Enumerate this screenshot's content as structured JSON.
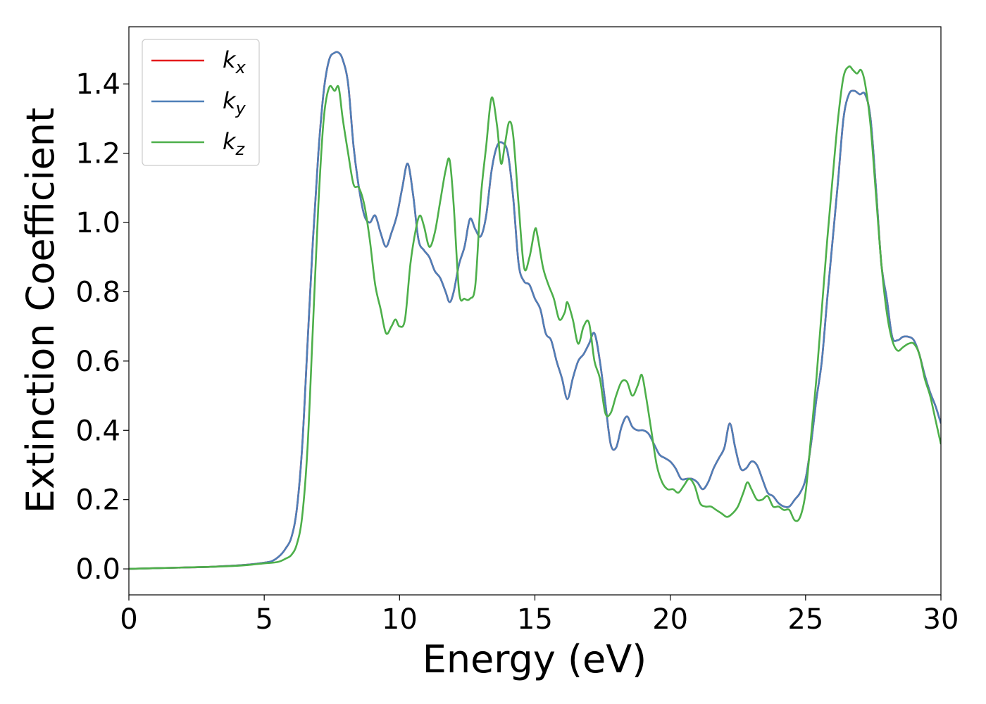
{
  "chart_data": {
    "type": "line",
    "title": "",
    "xlabel": "Energy (eV)",
    "ylabel": "Extinction Coefficient",
    "xlim": [
      0,
      30
    ],
    "ylim": [
      -0.075,
      1.565
    ],
    "xticks": [
      0,
      5,
      10,
      15,
      20,
      25,
      30
    ],
    "yticks": [
      0.0,
      0.2,
      0.4,
      0.6,
      0.8,
      1.0,
      1.2,
      1.4
    ],
    "grid": false,
    "legend_position": "top-left",
    "series": [
      {
        "name": "k",
        "subscript": "x",
        "color": "#e41a1c",
        "x": [
          0,
          1,
          2,
          3,
          4,
          4.5,
          5,
          5.3,
          5.6,
          5.8,
          6.0,
          6.2,
          6.4,
          6.6,
          6.8,
          7.0,
          7.2,
          7.4,
          7.6,
          7.75,
          7.9,
          8.1,
          8.3,
          8.5,
          8.7,
          8.9,
          9.1,
          9.3,
          9.5,
          9.7,
          9.9,
          10.1,
          10.3,
          10.5,
          10.7,
          10.9,
          11.1,
          11.3,
          11.5,
          11.7,
          11.85,
          12.0,
          12.2,
          12.4,
          12.6,
          12.8,
          13.0,
          13.2,
          13.4,
          13.6,
          13.8,
          14.0,
          14.2,
          14.4,
          14.6,
          14.8,
          15.0,
          15.2,
          15.4,
          15.6,
          15.8,
          16.0,
          16.2,
          16.4,
          16.6,
          16.8,
          17.0,
          17.2,
          17.4,
          17.6,
          17.8,
          18.0,
          18.2,
          18.4,
          18.6,
          18.8,
          19.0,
          19.2,
          19.4,
          19.6,
          19.8,
          20.0,
          20.2,
          20.4,
          20.6,
          20.8,
          21.0,
          21.2,
          21.4,
          21.6,
          21.8,
          22.0,
          22.2,
          22.4,
          22.6,
          22.8,
          23.0,
          23.2,
          23.4,
          23.6,
          23.8,
          24.0,
          24.2,
          24.4,
          24.6,
          24.8,
          25.0,
          25.2,
          25.4,
          25.6,
          25.8,
          26.0,
          26.2,
          26.4,
          26.6,
          26.8,
          27.0,
          27.2,
          27.4,
          27.6,
          27.8,
          28.0,
          28.2,
          28.4,
          28.6,
          28.8,
          29.0,
          29.2,
          29.4,
          29.6,
          29.8,
          30.0
        ],
        "y": [
          0.0,
          0.002,
          0.004,
          0.006,
          0.01,
          0.013,
          0.018,
          0.023,
          0.04,
          0.06,
          0.09,
          0.17,
          0.35,
          0.65,
          0.95,
          1.2,
          1.38,
          1.47,
          1.49,
          1.49,
          1.47,
          1.4,
          1.22,
          1.1,
          1.02,
          1.0,
          1.02,
          0.97,
          0.93,
          0.97,
          1.02,
          1.1,
          1.17,
          1.08,
          0.95,
          0.92,
          0.9,
          0.86,
          0.84,
          0.8,
          0.77,
          0.8,
          0.88,
          0.93,
          1.01,
          0.98,
          0.96,
          1.02,
          1.15,
          1.22,
          1.23,
          1.2,
          1.07,
          0.88,
          0.83,
          0.82,
          0.78,
          0.75,
          0.68,
          0.66,
          0.6,
          0.55,
          0.49,
          0.55,
          0.6,
          0.62,
          0.65,
          0.68,
          0.6,
          0.48,
          0.36,
          0.35,
          0.41,
          0.44,
          0.41,
          0.4,
          0.4,
          0.39,
          0.36,
          0.33,
          0.32,
          0.31,
          0.29,
          0.26,
          0.26,
          0.26,
          0.25,
          0.23,
          0.25,
          0.29,
          0.32,
          0.35,
          0.42,
          0.35,
          0.29,
          0.29,
          0.31,
          0.3,
          0.26,
          0.22,
          0.21,
          0.19,
          0.18,
          0.18,
          0.2,
          0.22,
          0.26,
          0.36,
          0.49,
          0.6,
          0.78,
          0.95,
          1.12,
          1.3,
          1.37,
          1.38,
          1.37,
          1.37,
          1.3,
          1.1,
          0.88,
          0.78,
          0.67,
          0.66,
          0.67,
          0.67,
          0.66,
          0.62,
          0.56,
          0.51,
          0.47,
          0.42
        ]
      },
      {
        "name": "k",
        "subscript": "y",
        "color": "#4e7fb8",
        "x": [
          0,
          1,
          2,
          3,
          4,
          4.5,
          5,
          5.3,
          5.6,
          5.8,
          6.0,
          6.2,
          6.4,
          6.6,
          6.8,
          7.0,
          7.2,
          7.4,
          7.6,
          7.75,
          7.9,
          8.1,
          8.3,
          8.5,
          8.7,
          8.9,
          9.1,
          9.3,
          9.5,
          9.7,
          9.9,
          10.1,
          10.3,
          10.5,
          10.7,
          10.9,
          11.1,
          11.3,
          11.5,
          11.7,
          11.85,
          12.0,
          12.2,
          12.4,
          12.6,
          12.8,
          13.0,
          13.2,
          13.4,
          13.6,
          13.8,
          14.0,
          14.2,
          14.4,
          14.6,
          14.8,
          15.0,
          15.2,
          15.4,
          15.6,
          15.8,
          16.0,
          16.2,
          16.4,
          16.6,
          16.8,
          17.0,
          17.2,
          17.4,
          17.6,
          17.8,
          18.0,
          18.2,
          18.4,
          18.6,
          18.8,
          19.0,
          19.2,
          19.4,
          19.6,
          19.8,
          20.0,
          20.2,
          20.4,
          20.6,
          20.8,
          21.0,
          21.2,
          21.4,
          21.6,
          21.8,
          22.0,
          22.2,
          22.4,
          22.6,
          22.8,
          23.0,
          23.2,
          23.4,
          23.6,
          23.8,
          24.0,
          24.2,
          24.4,
          24.6,
          24.8,
          25.0,
          25.2,
          25.4,
          25.6,
          25.8,
          26.0,
          26.2,
          26.4,
          26.6,
          26.8,
          27.0,
          27.2,
          27.4,
          27.6,
          27.8,
          28.0,
          28.2,
          28.4,
          28.6,
          28.8,
          29.0,
          29.2,
          29.4,
          29.6,
          29.8,
          30.0
        ],
        "y": [
          0.0,
          0.002,
          0.004,
          0.006,
          0.01,
          0.013,
          0.018,
          0.023,
          0.04,
          0.06,
          0.09,
          0.17,
          0.35,
          0.65,
          0.95,
          1.2,
          1.38,
          1.47,
          1.49,
          1.49,
          1.47,
          1.4,
          1.22,
          1.1,
          1.02,
          1.0,
          1.02,
          0.97,
          0.93,
          0.97,
          1.02,
          1.1,
          1.17,
          1.08,
          0.95,
          0.92,
          0.9,
          0.86,
          0.84,
          0.8,
          0.77,
          0.8,
          0.88,
          0.93,
          1.01,
          0.98,
          0.96,
          1.02,
          1.15,
          1.22,
          1.23,
          1.2,
          1.07,
          0.88,
          0.83,
          0.82,
          0.78,
          0.75,
          0.68,
          0.66,
          0.6,
          0.55,
          0.49,
          0.55,
          0.6,
          0.62,
          0.65,
          0.68,
          0.6,
          0.48,
          0.36,
          0.35,
          0.41,
          0.44,
          0.41,
          0.4,
          0.4,
          0.39,
          0.36,
          0.33,
          0.32,
          0.31,
          0.29,
          0.26,
          0.26,
          0.26,
          0.25,
          0.23,
          0.25,
          0.29,
          0.32,
          0.35,
          0.42,
          0.35,
          0.29,
          0.29,
          0.31,
          0.3,
          0.26,
          0.22,
          0.21,
          0.19,
          0.18,
          0.18,
          0.2,
          0.22,
          0.26,
          0.36,
          0.49,
          0.6,
          0.78,
          0.95,
          1.12,
          1.3,
          1.37,
          1.38,
          1.37,
          1.37,
          1.3,
          1.1,
          0.88,
          0.78,
          0.67,
          0.66,
          0.67,
          0.67,
          0.66,
          0.62,
          0.56,
          0.51,
          0.47,
          0.42
        ]
      },
      {
        "name": "k",
        "subscript": "z",
        "color": "#4daf4a",
        "x": [
          0,
          1,
          2,
          3,
          4,
          4.5,
          5,
          5.5,
          5.8,
          6.0,
          6.2,
          6.4,
          6.6,
          6.8,
          7.0,
          7.2,
          7.4,
          7.6,
          7.75,
          7.9,
          8.1,
          8.3,
          8.5,
          8.7,
          8.9,
          9.1,
          9.3,
          9.5,
          9.7,
          9.85,
          10.0,
          10.2,
          10.4,
          10.6,
          10.75,
          10.9,
          11.1,
          11.3,
          11.5,
          11.7,
          11.85,
          12.0,
          12.2,
          12.4,
          12.6,
          12.8,
          13.0,
          13.2,
          13.4,
          13.6,
          13.75,
          13.9,
          14.05,
          14.2,
          14.4,
          14.6,
          14.8,
          15.0,
          15.1,
          15.3,
          15.5,
          15.7,
          15.9,
          16.1,
          16.2,
          16.4,
          16.6,
          16.8,
          17.0,
          17.2,
          17.4,
          17.6,
          17.8,
          18.0,
          18.2,
          18.4,
          18.6,
          18.8,
          18.95,
          19.1,
          19.3,
          19.5,
          19.7,
          19.9,
          20.1,
          20.3,
          20.5,
          20.7,
          20.9,
          21.1,
          21.3,
          21.5,
          21.7,
          21.9,
          22.1,
          22.3,
          22.5,
          22.7,
          22.85,
          23.0,
          23.2,
          23.4,
          23.6,
          23.8,
          24.0,
          24.2,
          24.4,
          24.6,
          24.8,
          25.0,
          25.2,
          25.4,
          25.6,
          25.8,
          26.0,
          26.2,
          26.4,
          26.6,
          26.75,
          26.9,
          27.05,
          27.2,
          27.4,
          27.6,
          27.8,
          28.0,
          28.2,
          28.4,
          28.6,
          28.8,
          29.0,
          29.2,
          29.4,
          29.6,
          29.8,
          30.0
        ],
        "y": [
          0.0,
          0.002,
          0.004,
          0.006,
          0.009,
          0.012,
          0.016,
          0.02,
          0.03,
          0.04,
          0.07,
          0.15,
          0.35,
          0.7,
          1.05,
          1.3,
          1.39,
          1.38,
          1.39,
          1.3,
          1.2,
          1.11,
          1.1,
          1.05,
          0.95,
          0.82,
          0.75,
          0.68,
          0.7,
          0.72,
          0.7,
          0.72,
          0.88,
          0.98,
          1.02,
          0.99,
          0.93,
          0.97,
          1.06,
          1.15,
          1.18,
          1.05,
          0.8,
          0.78,
          0.78,
          0.82,
          1.07,
          1.22,
          1.36,
          1.28,
          1.17,
          1.23,
          1.29,
          1.25,
          1.05,
          0.87,
          0.9,
          0.98,
          0.96,
          0.87,
          0.82,
          0.78,
          0.72,
          0.74,
          0.77,
          0.72,
          0.65,
          0.7,
          0.71,
          0.6,
          0.55,
          0.45,
          0.45,
          0.5,
          0.54,
          0.54,
          0.5,
          0.53,
          0.56,
          0.5,
          0.4,
          0.3,
          0.25,
          0.23,
          0.23,
          0.22,
          0.24,
          0.26,
          0.24,
          0.19,
          0.18,
          0.18,
          0.17,
          0.16,
          0.15,
          0.16,
          0.18,
          0.22,
          0.25,
          0.23,
          0.2,
          0.2,
          0.21,
          0.18,
          0.18,
          0.17,
          0.17,
          0.14,
          0.15,
          0.22,
          0.38,
          0.55,
          0.75,
          0.95,
          1.13,
          1.3,
          1.42,
          1.45,
          1.44,
          1.43,
          1.44,
          1.4,
          1.28,
          1.08,
          0.88,
          0.74,
          0.66,
          0.63,
          0.64,
          0.65,
          0.65,
          0.62,
          0.55,
          0.5,
          0.43,
          0.36
        ]
      }
    ]
  }
}
